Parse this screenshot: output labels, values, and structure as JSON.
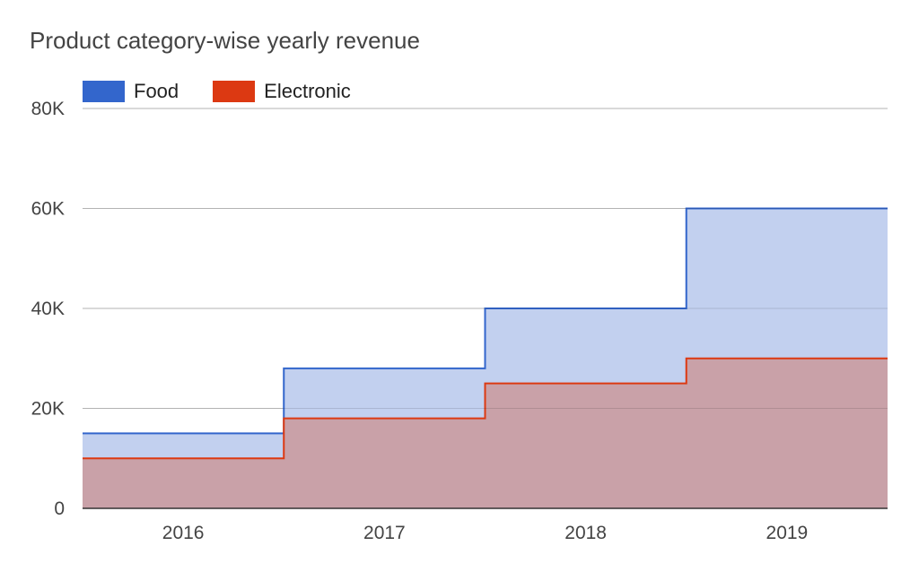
{
  "chart_data": {
    "type": "area",
    "subtype": "stepped",
    "title": "Product category-wise yearly revenue",
    "xlabel": "",
    "ylabel": "",
    "categories": [
      "2016",
      "2017",
      "2018",
      "2019"
    ],
    "series": [
      {
        "name": "Food",
        "color": "#3366cc",
        "fill": "#c2d0ef",
        "values": [
          15000,
          28000,
          40000,
          60000
        ]
      },
      {
        "name": "Electronic",
        "color": "#dc3912",
        "fill": "#c9a1a8",
        "values": [
          10000,
          18000,
          25000,
          30000
        ]
      }
    ],
    "ylim": [
      0,
      80000
    ],
    "yticks": [
      {
        "value": 0,
        "label": "0"
      },
      {
        "value": 20000,
        "label": "20K"
      },
      {
        "value": 40000,
        "label": "40K"
      },
      {
        "value": 60000,
        "label": "60K"
      },
      {
        "value": 80000,
        "label": "80K"
      }
    ],
    "grid": true,
    "legend_position": "top-left"
  }
}
